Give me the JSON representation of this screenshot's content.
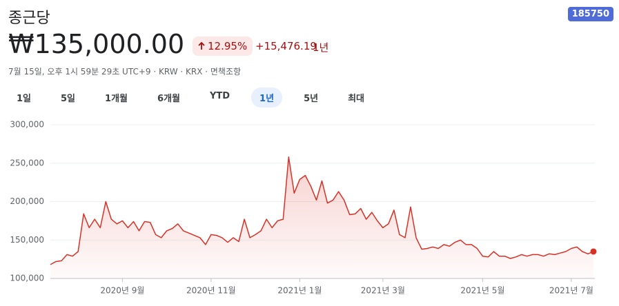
{
  "header": {
    "title": "종근당",
    "ticker": "185750",
    "price": "₩135,000.00",
    "change_percent": "12.95%",
    "change_amount": "+15,476.19",
    "change_period": "1년",
    "meta": "7월 15일, 오후 1시 59분 29초 UTC+9 · KRW · KRX · 면책조항"
  },
  "ranges": {
    "items": [
      "1일",
      "5일",
      "1개월",
      "6개월",
      "YTD",
      "1년",
      "5년",
      "최대"
    ],
    "active": 5
  },
  "chart_data": {
    "type": "line",
    "color": "#d93025",
    "grid": true,
    "categories": [
      null,
      null,
      null,
      null,
      null,
      null,
      null,
      null,
      null,
      null,
      null,
      null,
      null,
      "2020년 9월",
      null,
      null,
      null,
      null,
      null,
      null,
      null,
      null,
      null,
      null,
      null,
      null,
      null,
      null,
      null,
      "2020년 11월",
      null,
      null,
      null,
      null,
      null,
      null,
      null,
      null,
      null,
      null,
      null,
      null,
      null,
      null,
      null,
      "2021년 1월",
      null,
      null,
      null,
      null,
      null,
      null,
      null,
      null,
      null,
      null,
      null,
      null,
      null,
      null,
      "2021년 3월",
      null,
      null,
      null,
      null,
      null,
      null,
      null,
      null,
      null,
      null,
      null,
      null,
      null,
      null,
      null,
      null,
      null,
      "2021년 5월",
      null,
      null,
      null,
      null,
      null,
      null,
      null,
      null,
      null,
      null,
      null,
      null,
      null,
      null,
      null,
      "2021년 7월",
      null,
      null,
      null,
      null
    ],
    "values": [
      118000,
      122000,
      123000,
      131000,
      129000,
      135000,
      184000,
      166000,
      177000,
      166000,
      200000,
      177000,
      171000,
      175000,
      166000,
      174000,
      162000,
      174000,
      173000,
      157000,
      153000,
      162000,
      165000,
      171000,
      162000,
      159000,
      156000,
      153000,
      144000,
      157000,
      156000,
      153000,
      147000,
      153000,
      148000,
      177000,
      153000,
      157000,
      162000,
      177000,
      166000,
      175000,
      177000,
      258000,
      211000,
      229000,
      234000,
      220000,
      202000,
      227000,
      198000,
      202000,
      213000,
      202000,
      183000,
      184000,
      191000,
      177000,
      186000,
      175000,
      166000,
      171000,
      189000,
      157000,
      153000,
      193000,
      153000,
      138000,
      139000,
      141000,
      139000,
      144000,
      142000,
      147000,
      150000,
      144000,
      144000,
      139000,
      129000,
      128000,
      135000,
      129000,
      129000,
      126000,
      128000,
      131000,
      129000,
      131000,
      131000,
      129000,
      132000,
      131000,
      133000,
      135000,
      139000,
      141000,
      135000,
      132000,
      135000
    ],
    "ylim": [
      100000,
      300000
    ],
    "yticks": [
      {
        "value": 100000,
        "label": "100,000"
      },
      {
        "value": 150000,
        "label": "150,000"
      },
      {
        "value": 200000,
        "label": "200,000"
      },
      {
        "value": 250000,
        "label": "250,000"
      },
      {
        "value": 300000,
        "label": "300,000"
      }
    ]
  }
}
